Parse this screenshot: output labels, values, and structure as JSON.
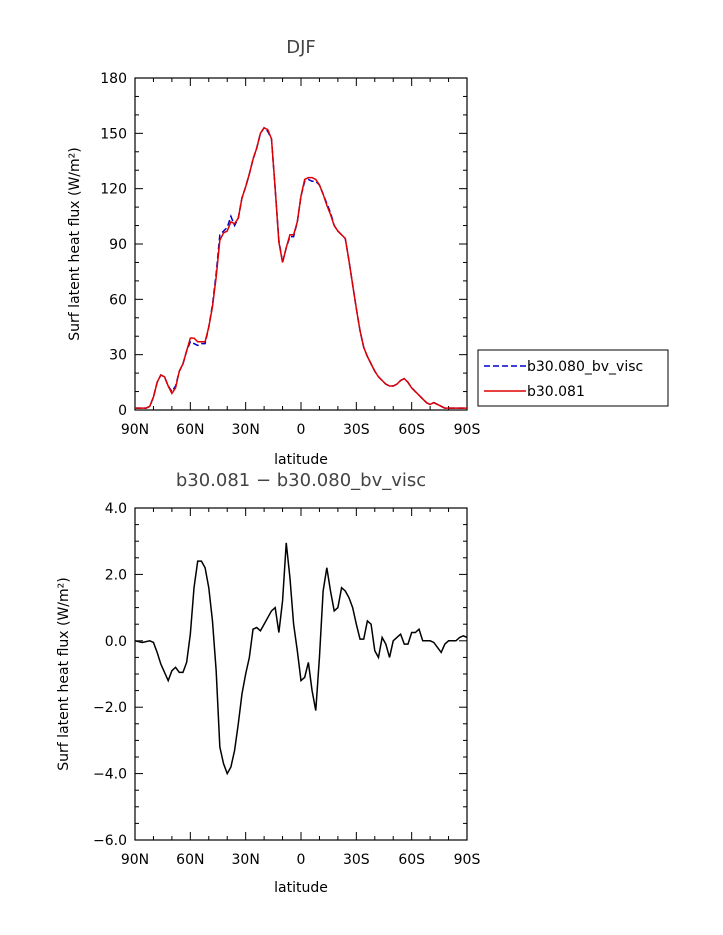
{
  "chart_data": [
    {
      "type": "line",
      "title": "DJF",
      "xlabel": "latitude",
      "ylabel": "Surf latent heat flux (W/m²)",
      "ylim": [
        0,
        180
      ],
      "xlim": [
        -90,
        90
      ],
      "x_tick_values": [
        -90,
        -60,
        -30,
        0,
        30,
        60,
        90
      ],
      "x_tick_labels": [
        "90N",
        "60N",
        "30N",
        "0",
        "30S",
        "60S",
        "90S"
      ],
      "y_tick_values": [
        0,
        30,
        60,
        90,
        120,
        150,
        180
      ],
      "y_tick_labels": [
        "0",
        "30",
        "60",
        "90",
        "120",
        "150",
        "180"
      ],
      "legend_position": "right",
      "series": [
        {
          "name": "b30.080_bv_visc",
          "color": "#0000cc",
          "dash": "dashed",
          "x": [
            -90,
            -84,
            -82,
            -80,
            -78,
            -76,
            -74,
            -72,
            -70,
            -68,
            -66,
            -64,
            -62,
            -60,
            -58,
            -56,
            -54,
            -52,
            -50,
            -48,
            -46,
            -44,
            -42,
            -40,
            -38,
            -36,
            -34,
            -32,
            -30,
            -28,
            -26,
            -24,
            -22,
            -20,
            -18,
            -16,
            -14,
            -12,
            -10,
            -8,
            -6,
            -4,
            -2,
            0,
            2,
            4,
            6,
            8,
            10,
            12,
            14,
            16,
            18,
            20,
            22,
            24,
            26,
            28,
            30,
            32,
            34,
            36,
            38,
            40,
            42,
            44,
            46,
            48,
            50,
            52,
            54,
            56,
            58,
            60,
            62,
            64,
            66,
            68,
            70,
            72,
            74,
            76,
            78,
            80,
            82,
            84,
            86,
            88,
            90
          ],
          "y": [
            1,
            1,
            2,
            7,
            15,
            19,
            18,
            13,
            10,
            13,
            21,
            25,
            32,
            37,
            36,
            35,
            36,
            36,
            45,
            57,
            74,
            95,
            97,
            99,
            105,
            100,
            104,
            115,
            121,
            128,
            136,
            142,
            150,
            153,
            151,
            147,
            120,
            92,
            80,
            88,
            94,
            94,
            102,
            116,
            124,
            125,
            124,
            124,
            122,
            117,
            112,
            107,
            100,
            97,
            95,
            93,
            81,
            68,
            55,
            43,
            34,
            29,
            25,
            21,
            18,
            16,
            14,
            13,
            13,
            14,
            16,
            17,
            15,
            12,
            10,
            8,
            6,
            4,
            3,
            4,
            3,
            2,
            1,
            1,
            1,
            1,
            1,
            1,
            1
          ],
          "values_note": ""
        },
        {
          "name": "b30.081",
          "color": "#dd0000",
          "dash": "solid",
          "x": [
            -90,
            -84,
            -82,
            -80,
            -78,
            -76,
            -74,
            -72,
            -70,
            -68,
            -66,
            -64,
            -62,
            -60,
            -58,
            -56,
            -54,
            -52,
            -50,
            -48,
            -46,
            -44,
            -42,
            -40,
            -38,
            -36,
            -34,
            -32,
            -30,
            -28,
            -26,
            -24,
            -22,
            -20,
            -18,
            -16,
            -14,
            -12,
            -10,
            -8,
            -6,
            -4,
            -2,
            0,
            2,
            4,
            6,
            8,
            10,
            12,
            14,
            16,
            18,
            20,
            22,
            24,
            26,
            28,
            30,
            32,
            34,
            36,
            38,
            40,
            42,
            44,
            46,
            48,
            50,
            52,
            54,
            56,
            58,
            60,
            62,
            64,
            66,
            68,
            70,
            72,
            74,
            76,
            78,
            80,
            82,
            84,
            86,
            88,
            90
          ],
          "y": [
            1,
            1,
            2,
            7,
            15,
            19,
            18,
            13,
            9,
            12,
            21,
            25,
            32,
            39,
            39,
            37,
            37,
            37,
            45,
            56,
            72,
            92,
            96,
            97,
            102,
            101,
            104,
            115,
            121,
            128,
            136,
            142,
            150,
            153,
            152,
            147,
            120,
            91,
            80,
            88,
            95,
            95,
            102,
            116,
            125,
            126,
            126,
            125,
            122,
            117,
            111,
            106,
            100,
            97,
            95,
            93,
            81,
            68,
            55,
            43,
            34,
            29,
            25,
            21,
            18,
            16,
            14,
            13,
            13,
            14,
            16,
            17,
            15,
            12,
            10,
            8,
            6,
            4,
            3,
            4,
            3,
            2,
            1,
            1,
            1,
            1,
            1,
            1,
            1
          ]
        }
      ]
    },
    {
      "type": "line",
      "title": "b30.081 − b30.080_bv_visc",
      "xlabel": "latitude",
      "ylabel": "Surf latent heat flux (W/m²)",
      "ylim": [
        -6,
        4
      ],
      "xlim": [
        -90,
        90
      ],
      "x_tick_values": [
        -90,
        -60,
        -30,
        0,
        30,
        60,
        90
      ],
      "x_tick_labels": [
        "90N",
        "60N",
        "30N",
        "0",
        "30S",
        "60S",
        "90S"
      ],
      "y_tick_values": [
        -6,
        -4,
        -2,
        0,
        2,
        4
      ],
      "y_tick_labels": [
        "−6.0",
        "−4.0",
        "−2.0",
        "0.0",
        "2.0",
        "4.0"
      ],
      "series": [
        {
          "name": "",
          "color": "#000000",
          "dash": "solid",
          "x": [
            -90,
            -86,
            -82,
            -80,
            -78,
            -76,
            -74,
            -72,
            -70,
            -68,
            -66,
            -64,
            -62,
            -60,
            -58,
            -56,
            -54,
            -52,
            -50,
            -48,
            -46,
            -44,
            -42,
            -40,
            -38,
            -36,
            -34,
            -32,
            -30,
            -28,
            -26,
            -24,
            -22,
            -20,
            -18,
            -16,
            -14,
            -12,
            -10,
            -8,
            -6,
            -4,
            -2,
            0,
            2,
            4,
            6,
            8,
            10,
            12,
            14,
            16,
            18,
            20,
            22,
            24,
            26,
            28,
            30,
            32,
            34,
            36,
            38,
            40,
            42,
            44,
            46,
            48,
            50,
            52,
            54,
            56,
            58,
            60,
            62,
            64,
            66,
            68,
            70,
            72,
            74,
            76,
            78,
            80,
            82,
            84,
            86,
            88,
            90
          ],
          "y": [
            0.0,
            -0.05,
            0.0,
            -0.05,
            -0.35,
            -0.7,
            -0.95,
            -1.2,
            -0.9,
            -0.8,
            -0.95,
            -0.95,
            -0.65,
            0.2,
            1.6,
            2.4,
            2.4,
            2.2,
            1.6,
            0.6,
            -0.9,
            -3.2,
            -3.7,
            -4.0,
            -3.8,
            -3.3,
            -2.5,
            -1.6,
            -1.0,
            -0.5,
            0.35,
            0.4,
            0.3,
            0.5,
            0.7,
            0.9,
            1.0,
            0.25,
            1.2,
            2.95,
            1.9,
            0.5,
            -0.3,
            -1.2,
            -1.1,
            -0.65,
            -1.5,
            -2.1,
            -0.5,
            1.5,
            2.2,
            1.5,
            0.9,
            1.0,
            1.6,
            1.5,
            1.3,
            1.0,
            0.5,
            0.05,
            0.05,
            0.6,
            0.5,
            -0.3,
            -0.5,
            0.1,
            -0.1,
            -0.5,
            0.0,
            0.1,
            0.2,
            -0.1,
            -0.1,
            0.25,
            0.25,
            0.35,
            0.0,
            0.0,
            0.0,
            -0.05,
            -0.2,
            -0.35,
            -0.1,
            0.0,
            0.0,
            0.0,
            0.1,
            0.15,
            0.1
          ]
        }
      ]
    }
  ]
}
